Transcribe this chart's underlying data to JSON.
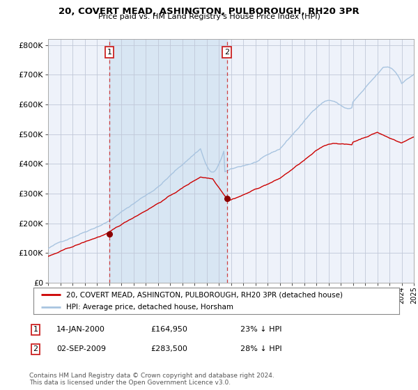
{
  "title": "20, COVERT MEAD, ASHINGTON, PULBOROUGH, RH20 3PR",
  "subtitle": "Price paid vs. HM Land Registry's House Price Index (HPI)",
  "legend_line1": "20, COVERT MEAD, ASHINGTON, PULBOROUGH, RH20 3PR (detached house)",
  "legend_line2": "HPI: Average price, detached house, Horsham",
  "annotation1_date": "14-JAN-2000",
  "annotation1_price": "£164,950",
  "annotation1_pct": "23% ↓ HPI",
  "annotation2_date": "02-SEP-2009",
  "annotation2_price": "£283,500",
  "annotation2_pct": "28% ↓ HPI",
  "footer": "Contains HM Land Registry data © Crown copyright and database right 2024.\nThis data is licensed under the Open Government Licence v3.0.",
  "hpi_color": "#a8c4e0",
  "price_color": "#cc0000",
  "dot_color": "#8b0000",
  "background_color": "#ffffff",
  "plot_bg_color": "#eef2fa",
  "shade_color": "#d8e6f3",
  "grid_color": "#c0c8d8",
  "annotation_box_color": "#cc2222",
  "ylim": [
    0,
    820000
  ],
  "yticks": [
    0,
    100000,
    200000,
    300000,
    400000,
    500000,
    600000,
    700000,
    800000
  ],
  "ytick_labels": [
    "£0",
    "£100K",
    "£200K",
    "£300K",
    "£400K",
    "£500K",
    "£600K",
    "£700K",
    "£800K"
  ],
  "year_start": 1995,
  "year_end": 2025,
  "sale1_year": 2000.04,
  "sale1_value": 164950,
  "sale2_year": 2009.67,
  "sale2_value": 283500
}
